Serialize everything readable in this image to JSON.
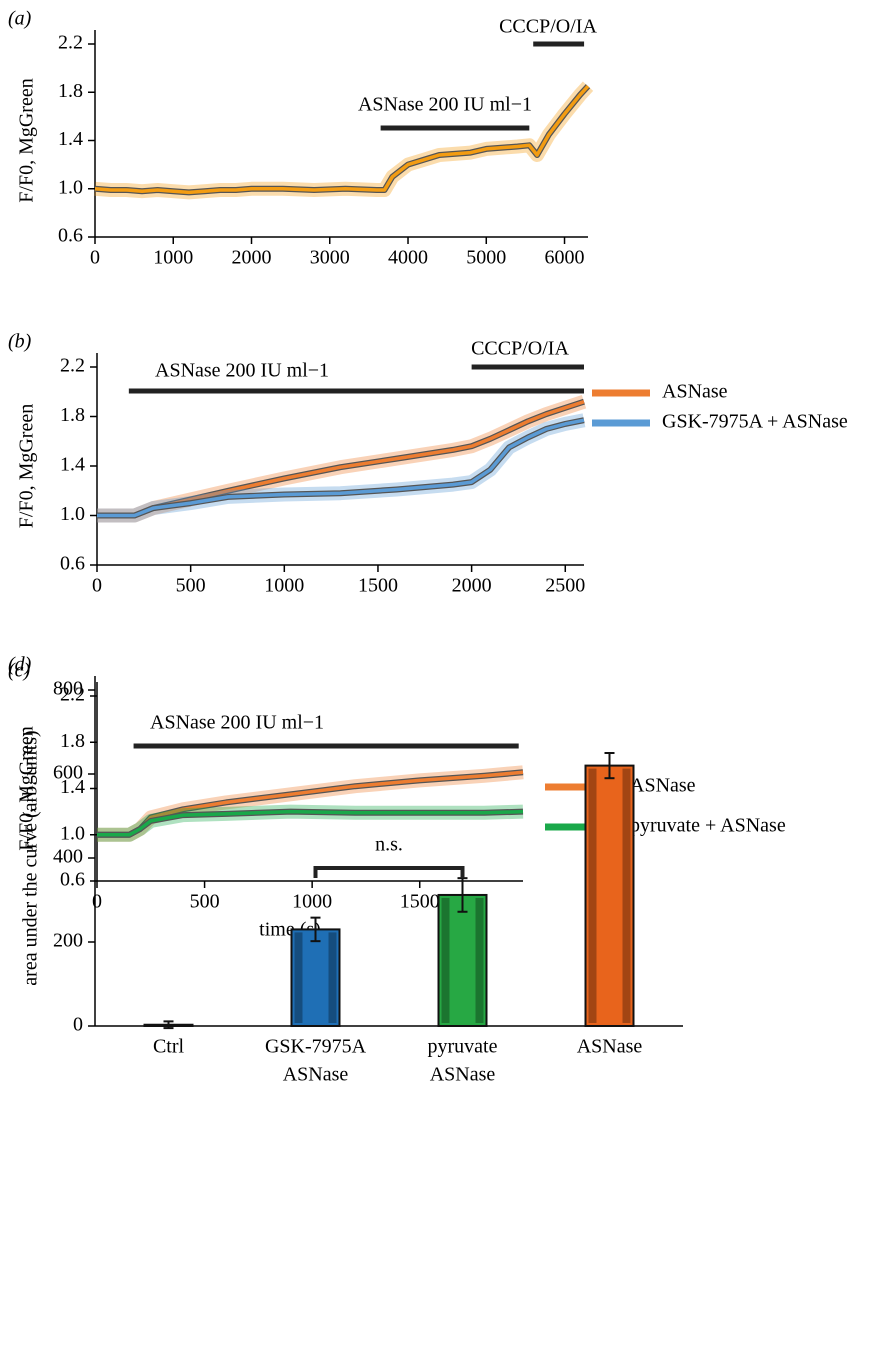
{
  "chart_data": [
    {
      "type": "line",
      "label": "(a)",
      "ylabel": "F/F0, MgGreen",
      "xlim": [
        0,
        6300
      ],
      "xticks": [
        0,
        1000,
        2000,
        3000,
        4000,
        5000,
        6000
      ],
      "ylim": [
        0.6,
        2.2
      ],
      "yticks": [
        0.6,
        {
          "value": 1,
          "label": "1.0"
        },
        1.4,
        1.8,
        2.2
      ],
      "annotations": [
        {
          "text": "ASNase 200 IU ml−1",
          "x": [
            3650,
            5550
          ]
        },
        {
          "text": "CCCP/O/IA",
          "x": [
            5600,
            6250
          ]
        }
      ],
      "x": [
        0,
        200,
        400,
        600,
        800,
        1000,
        1200,
        1400,
        1600,
        1800,
        2000,
        2400,
        2800,
        3200,
        3600,
        3700,
        3800,
        4000,
        4200,
        4400,
        4800,
        5000,
        5400,
        5550,
        5650,
        5800,
        6000,
        6200,
        6300
      ],
      "series": [
        {
          "name": "ASNase",
          "color": "#f39c12",
          "values": [
            1.0,
            0.99,
            0.99,
            0.98,
            0.99,
            0.98,
            0.97,
            0.98,
            0.99,
            0.99,
            1.0,
            1.0,
            0.99,
            1.0,
            0.99,
            0.99,
            1.1,
            1.2,
            1.24,
            1.28,
            1.3,
            1.33,
            1.35,
            1.36,
            1.28,
            1.45,
            1.62,
            1.78,
            1.85
          ]
        }
      ]
    },
    {
      "type": "line",
      "label": "(b)",
      "ylabel": "F/F0, MgGreen",
      "legend": "right",
      "xlim": [
        0,
        2600
      ],
      "xticks": [
        0,
        500,
        1000,
        1500,
        2000,
        2500
      ],
      "ylim": [
        0.6,
        2.2
      ],
      "yticks": [
        0.6,
        {
          "value": 1,
          "label": "1.0"
        },
        1.4,
        1.8,
        2.2
      ],
      "annotations": [
        {
          "text": "ASNase 200 IU ml−1",
          "x": [
            170,
            2600
          ]
        },
        {
          "text": "CCCP/O/IA",
          "x": [
            2000,
            2600
          ]
        }
      ],
      "x": [
        0,
        200,
        300,
        500,
        700,
        1000,
        1300,
        1600,
        1900,
        2000,
        2100,
        2200,
        2300,
        2400,
        2500,
        2600
      ],
      "series": [
        {
          "name": "ASNase",
          "color": "#ed7d31",
          "values": [
            1.0,
            1.0,
            1.06,
            1.13,
            1.2,
            1.3,
            1.39,
            1.46,
            1.53,
            1.56,
            1.62,
            1.69,
            1.76,
            1.82,
            1.87,
            1.92
          ]
        },
        {
          "name": "GSK-7975A + ASNase",
          "color": "#5b9bd5",
          "values": [
            1.0,
            1.0,
            1.06,
            1.1,
            1.15,
            1.17,
            1.18,
            1.21,
            1.25,
            1.27,
            1.37,
            1.55,
            1.63,
            1.7,
            1.74,
            1.77
          ]
        }
      ]
    },
    {
      "type": "line",
      "label": "(c)",
      "ylabel": "F/F0, MgGreen",
      "xlabel": "time (s)",
      "legend": "right",
      "xlim": [
        0,
        1980
      ],
      "xticks": [
        0,
        500,
        1000,
        1500
      ],
      "ylim": [
        0.6,
        2.2
      ],
      "yticks": [
        0.6,
        {
          "value": 1,
          "label": "1.0"
        },
        1.4,
        1.8,
        2.2
      ],
      "annotations": [
        {
          "text": "ASNase 200 IU ml−1",
          "x": [
            170,
            1960
          ]
        }
      ],
      "x": [
        0,
        150,
        200,
        250,
        400,
        600,
        900,
        1200,
        1500,
        1800,
        1980
      ],
      "series": [
        {
          "name": "ASNase",
          "color": "#ed7d31",
          "values": [
            1.0,
            1.0,
            1.05,
            1.15,
            1.22,
            1.28,
            1.35,
            1.42,
            1.47,
            1.51,
            1.54
          ]
        },
        {
          "name": "pyruvate + ASNase",
          "color": "#1aa84a",
          "values": [
            1.0,
            1.0,
            1.05,
            1.12,
            1.17,
            1.18,
            1.2,
            1.19,
            1.19,
            1.19,
            1.2
          ]
        }
      ]
    },
    {
      "type": "bar",
      "label": "(d)",
      "ylabel": "area under the curve (arb. units)",
      "ylim": [
        0,
        800
      ],
      "yticks": [
        0,
        200,
        400,
        600,
        800
      ],
      "categories": [
        [
          "Ctrl"
        ],
        [
          "GSK-7975A",
          "ASNase"
        ],
        [
          "pyruvate",
          "ASNase"
        ],
        [
          "ASNase"
        ]
      ],
      "values": [
        3,
        230,
        312,
        620
      ],
      "errors": [
        8,
        28,
        40,
        30
      ],
      "colors": [
        "#333333",
        "#1f6fb5",
        "#27a844",
        "#e8641c"
      ],
      "annotation": "n.s."
    }
  ]
}
